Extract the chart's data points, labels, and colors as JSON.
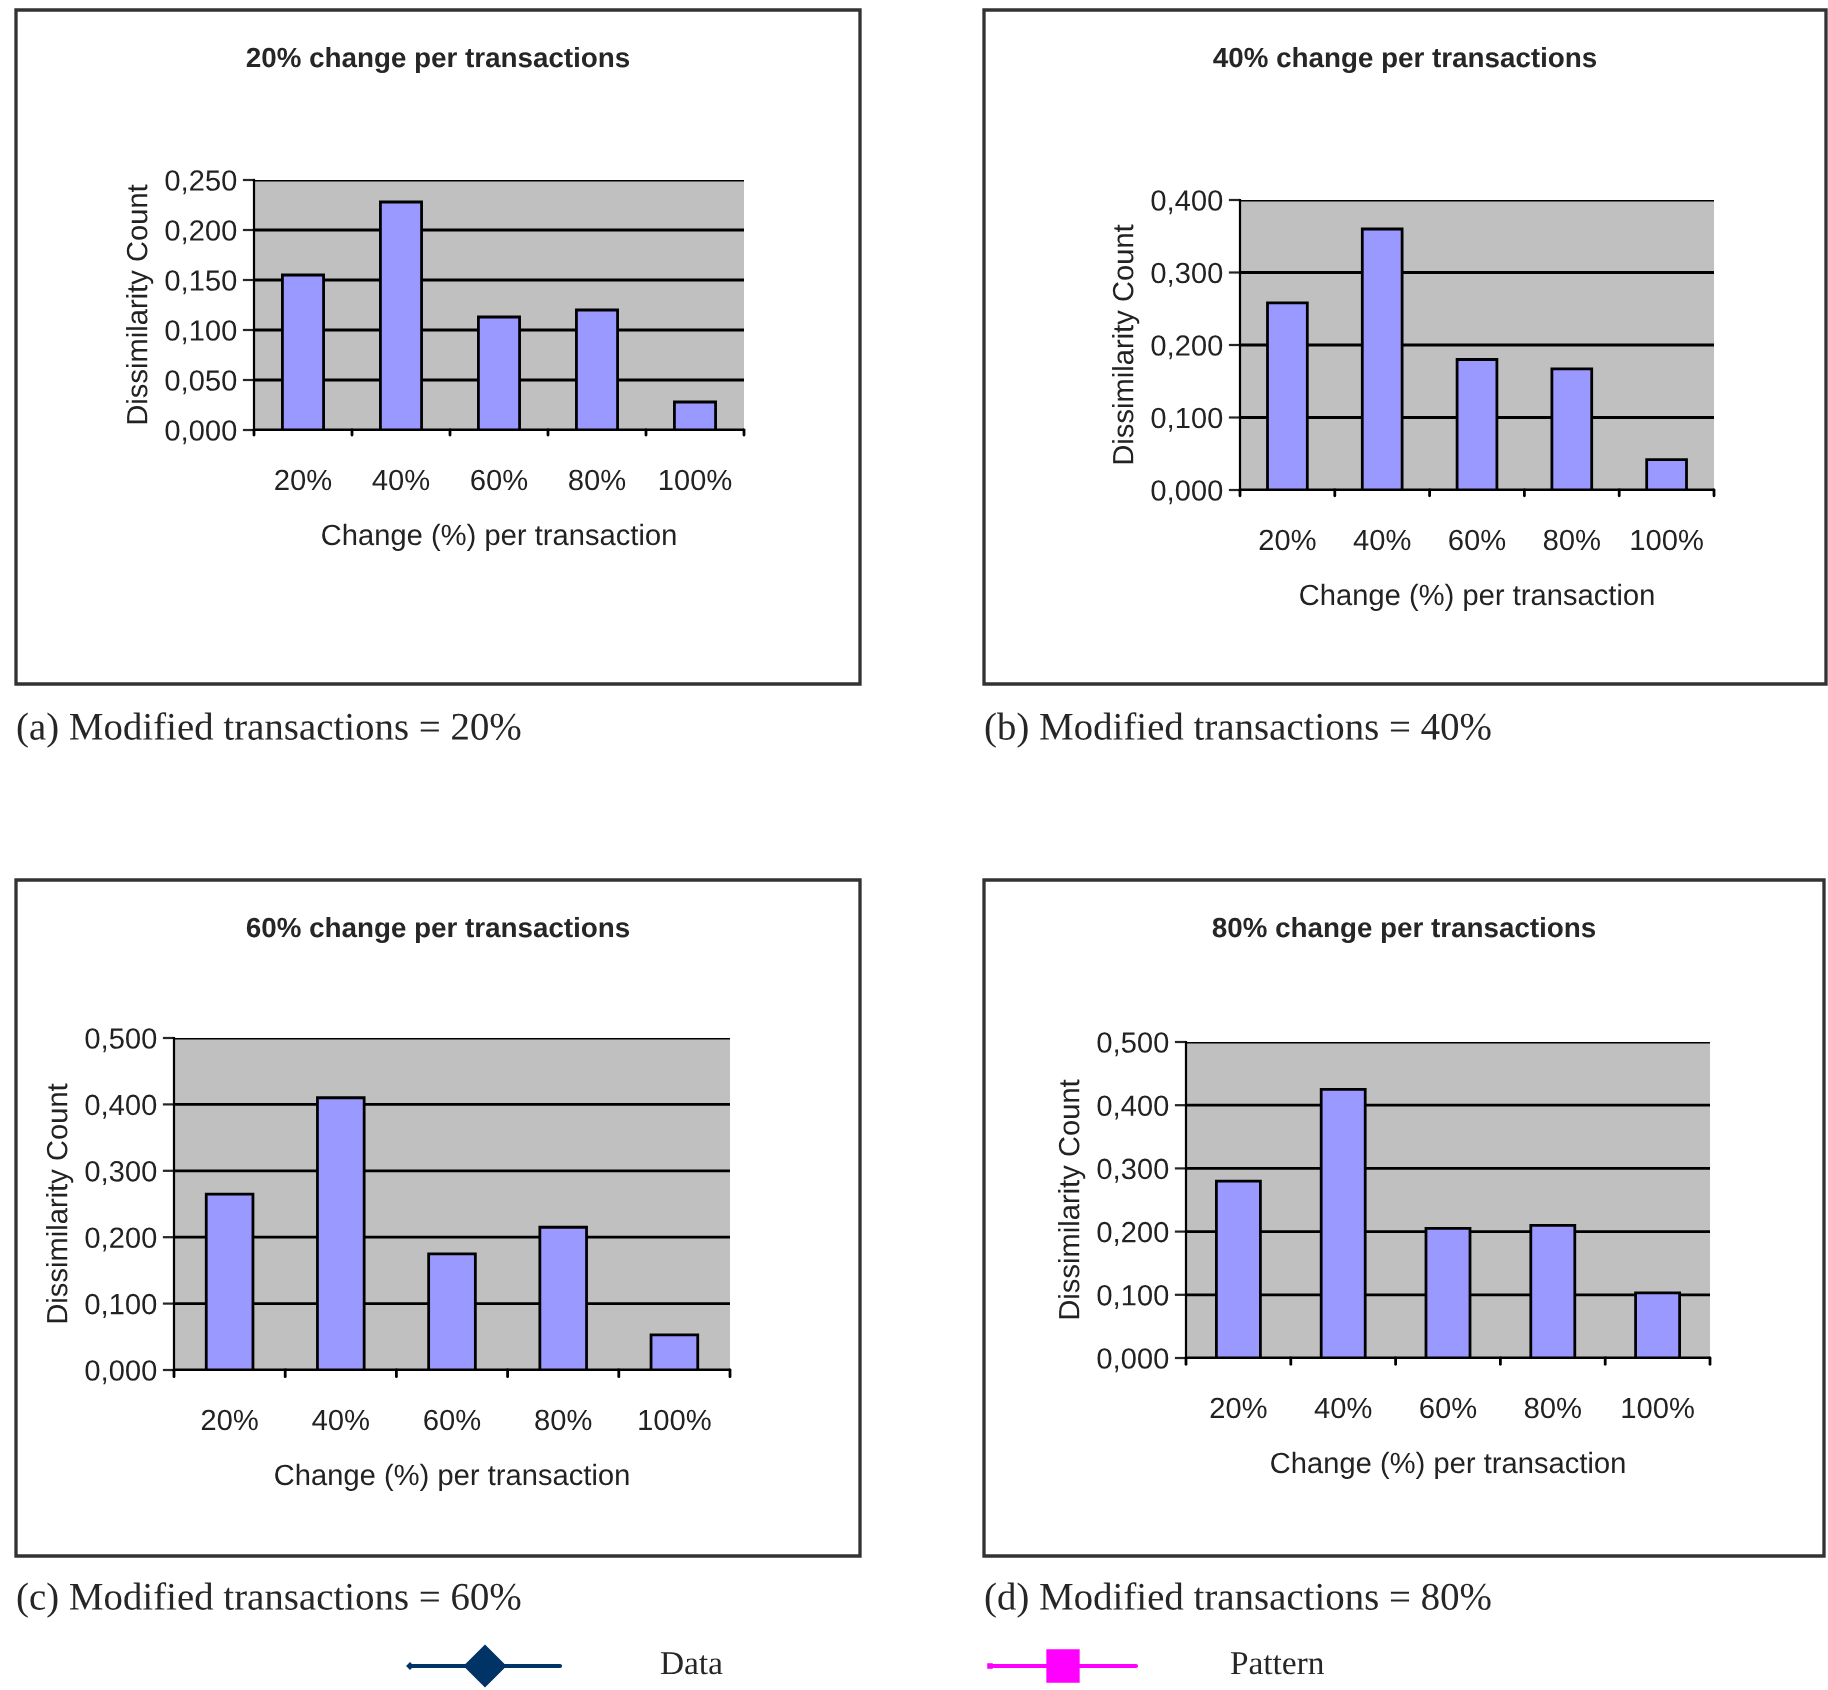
{
  "chart_data": [
    {
      "type": "bar",
      "title": "20% change per transactions",
      "xlabel": "Change (%) per transaction",
      "ylabel": "Dissimilarity Count",
      "categories": [
        "20%",
        "40%",
        "60%",
        "80%",
        "100%"
      ],
      "values": [
        0.155,
        0.228,
        0.113,
        0.12,
        0.028
      ],
      "color": "#9999ff",
      "ylim": [
        0,
        0.25
      ],
      "yticks": [
        {
          "value": 0,
          "label": "0,000"
        },
        {
          "value": 0.05,
          "label": "0,050"
        },
        {
          "value": 0.1,
          "label": "0,100"
        },
        {
          "value": 0.15,
          "label": "0,150"
        },
        {
          "value": 0.2,
          "label": "0,200"
        },
        {
          "value": 0.25,
          "label": "0,250"
        }
      ],
      "grid": "y",
      "legend": false,
      "annotations": [
        "(a) Modified transactions = 20%"
      ]
    },
    {
      "type": "bar",
      "title": "40% change per transactions",
      "xlabel": "Change (%) per transaction",
      "ylabel": "Dissimilarity Count",
      "categories": [
        "20%",
        "40%",
        "60%",
        "80%",
        "100%"
      ],
      "values": [
        0.258,
        0.36,
        0.18,
        0.167,
        0.042
      ],
      "color": "#9999ff",
      "ylim": [
        0,
        0.4
      ],
      "yticks": [
        {
          "value": 0,
          "label": "0,000"
        },
        {
          "value": 0.1,
          "label": "0,100"
        },
        {
          "value": 0.2,
          "label": "0,200"
        },
        {
          "value": 0.3,
          "label": "0,300"
        },
        {
          "value": 0.4,
          "label": "0,400"
        }
      ],
      "grid": "y",
      "legend": false,
      "annotations": [
        "(b) Modified transactions = 40%"
      ]
    },
    {
      "type": "bar",
      "title": "60% change per transactions",
      "xlabel": "Change (%) per transaction",
      "ylabel": "Dissimilarity Count",
      "categories": [
        "20%",
        "40%",
        "60%",
        "80%",
        "100%"
      ],
      "values": [
        0.265,
        0.41,
        0.175,
        0.215,
        0.053
      ],
      "color": "#9999ff",
      "ylim": [
        0,
        0.5
      ],
      "yticks": [
        {
          "value": 0,
          "label": "0,000"
        },
        {
          "value": 0.1,
          "label": "0,100"
        },
        {
          "value": 0.2,
          "label": "0,200"
        },
        {
          "value": 0.3,
          "label": "0,300"
        },
        {
          "value": 0.4,
          "label": "0,400"
        },
        {
          "value": 0.5,
          "label": "0,500"
        }
      ],
      "grid": "y",
      "legend": false,
      "annotations": [
        "(c) Modified transactions = 60%"
      ]
    },
    {
      "type": "bar",
      "title": "80% change per transactions",
      "xlabel": "Change (%) per transaction",
      "ylabel": "Dissimilarity Count",
      "categories": [
        "20%",
        "40%",
        "60%",
        "80%",
        "100%"
      ],
      "values": [
        0.28,
        0.425,
        0.205,
        0.21,
        0.103
      ],
      "color": "#9999ff",
      "ylim": [
        0,
        0.5
      ],
      "yticks": [
        {
          "value": 0,
          "label": "0,000"
        },
        {
          "value": 0.1,
          "label": "0,100"
        },
        {
          "value": 0.2,
          "label": "0,200"
        },
        {
          "value": 0.3,
          "label": "0,300"
        },
        {
          "value": 0.4,
          "label": "0,400"
        },
        {
          "value": 0.5,
          "label": "0,500"
        }
      ],
      "grid": "y",
      "legend": false,
      "annotations": [
        "(d) Modified transactions = 80%"
      ]
    },
    {
      "type": "other",
      "annotations": [
        "Data",
        "Pattern"
      ]
    }
  ]
}
